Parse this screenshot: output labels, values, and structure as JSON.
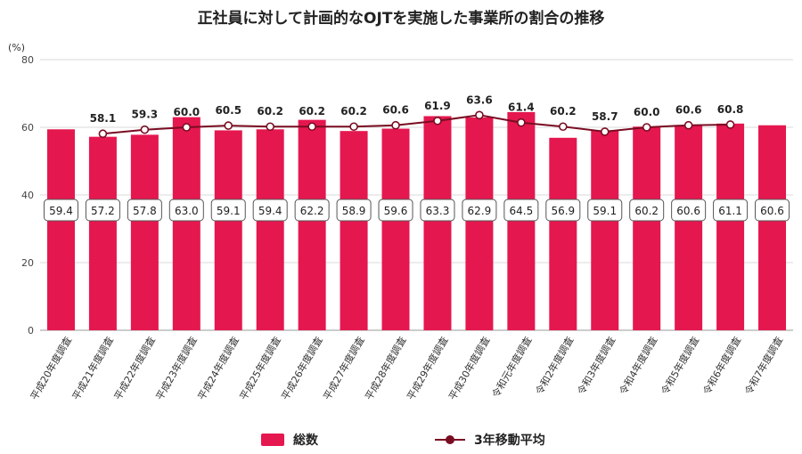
{
  "chart_data": {
    "type": "bar",
    "title": "正社員に対して計画的なOJTを実施した事業所の割合の推移",
    "ylabel": "(%)",
    "ylim": [
      0,
      80
    ],
    "yticks": [
      "0",
      "20",
      "40",
      "60",
      "80"
    ],
    "grid": true,
    "legend_position": "bottom",
    "categories": [
      "平成20年度調査",
      "平成21年度調査",
      "平成22年度調査",
      "平成23年度調査",
      "平成24年度調査",
      "平成25年度調査",
      "平成26年度調査",
      "平成27年度調査",
      "平成28年度調査",
      "平成29年度調査",
      "平成30年度調査",
      "令和元年度調査",
      "令和2年度調査",
      "令和3年度調査",
      "令和4年度調査",
      "令和5年度調査",
      "令和6年度調査",
      "令和7年度調査"
    ],
    "series": [
      {
        "name": "総数",
        "type": "bar",
        "color": "#e5174f",
        "values": [
          59.4,
          57.2,
          57.8,
          63.0,
          59.1,
          59.4,
          62.2,
          58.9,
          59.6,
          63.3,
          62.9,
          64.5,
          56.9,
          59.1,
          60.2,
          60.6,
          61.1,
          60.6
        ],
        "labels": [
          "59.4",
          "57.2",
          "57.8",
          "63.0",
          "59.1",
          "59.4",
          "62.2",
          "58.9",
          "59.6",
          "63.3",
          "62.9",
          "64.5",
          "56.9",
          "59.1",
          "60.2",
          "60.6",
          "61.1",
          "60.6"
        ]
      },
      {
        "name": "3年移動平均",
        "type": "line",
        "color": "#7a0c22",
        "values": [
          null,
          58.1,
          59.3,
          60.0,
          60.5,
          60.2,
          60.2,
          60.2,
          60.6,
          61.9,
          63.6,
          61.4,
          60.2,
          58.7,
          60.0,
          60.6,
          60.8,
          null
        ],
        "labels": [
          "",
          "58.1",
          "59.3",
          "60.0",
          "60.5",
          "60.2",
          "60.2",
          "60.2",
          "60.6",
          "61.9",
          "63.6",
          "61.4",
          "60.2",
          "58.7",
          "60.0",
          "60.6",
          "60.8",
          ""
        ]
      }
    ]
  },
  "legend": {
    "bar_label": "総数",
    "line_label": "3年移動平均"
  }
}
